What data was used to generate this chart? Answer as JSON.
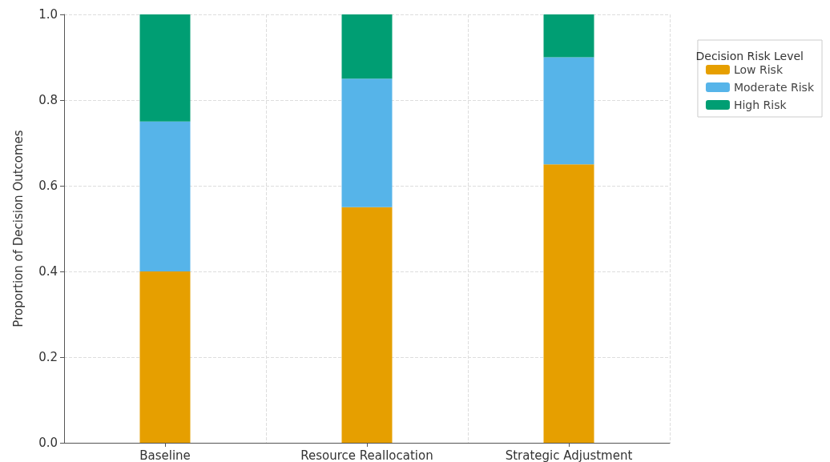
{
  "chart_data": {
    "type": "bar",
    "stacked": true,
    "categories": [
      "Baseline",
      "Resource Reallocation",
      "Strategic Adjustment"
    ],
    "ylabel": "Proportion of Decision Outcomes",
    "legend_title": "Decision Risk Level",
    "series": [
      {
        "name": "Low Risk",
        "color": "#e69f00",
        "values": [
          0.4,
          0.55,
          0.65
        ]
      },
      {
        "name": "Moderate Risk",
        "color": "#56b4e9",
        "values": [
          0.35,
          0.3,
          0.25
        ]
      },
      {
        "name": "High Risk",
        "color": "#009e73",
        "values": [
          0.25,
          0.15,
          0.1
        ]
      }
    ],
    "ylim": [
      0,
      1.0
    ],
    "yticks": [
      {
        "value": 0,
        "label": "0.0"
      },
      0.2,
      0.4,
      0.6,
      0.8,
      {
        "value": 1,
        "label": "1.0"
      }
    ],
    "grid": true,
    "legend": "right"
  }
}
